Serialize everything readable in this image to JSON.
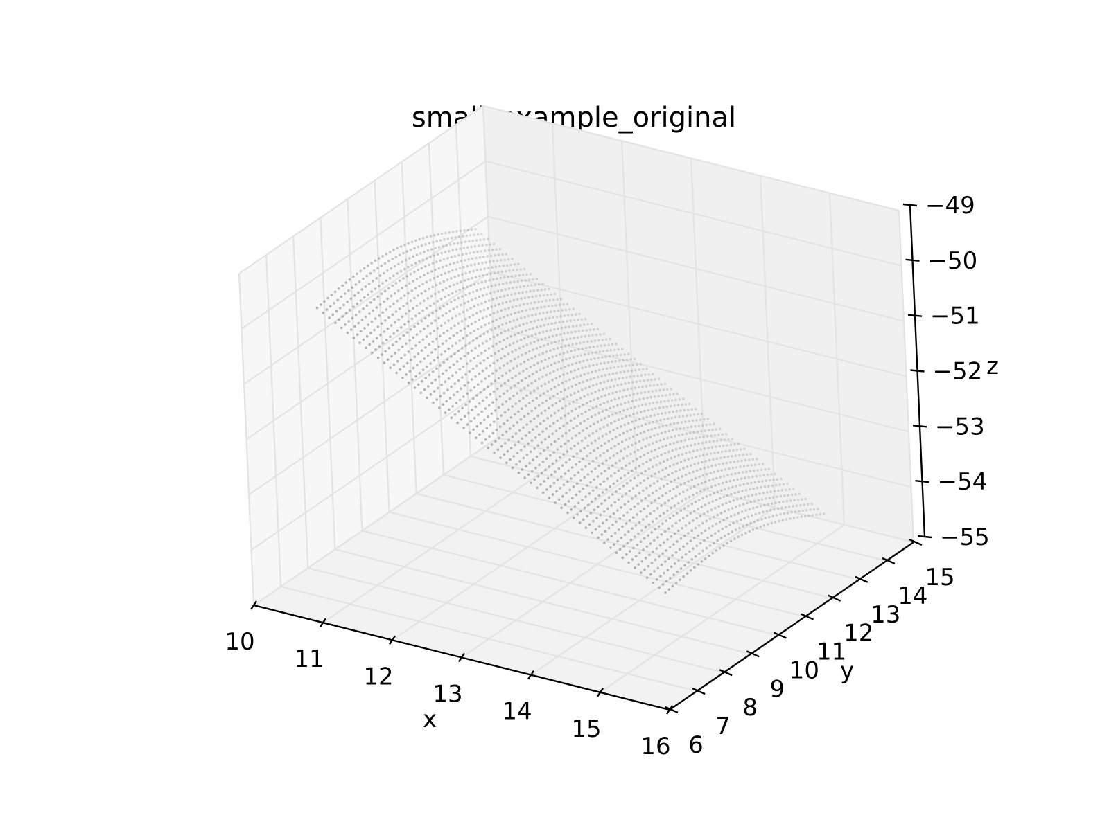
{
  "chart_data": {
    "type": "scatter",
    "projection": "3d",
    "title": "small_example_original",
    "xlabel": "x",
    "ylabel": "y",
    "zlabel": "z",
    "xlim": [
      10,
      16
    ],
    "ylim": [
      6,
      15
    ],
    "zlim": [
      -55,
      -49
    ],
    "xticks": [
      "10",
      "11",
      "12",
      "13",
      "14",
      "15",
      "16"
    ],
    "yticks": [
      "6",
      "7",
      "8",
      "9",
      "10",
      "11",
      "12",
      "13",
      "14",
      "15"
    ],
    "zticks": [
      "−49",
      "−50",
      "−51",
      "−52",
      "−53",
      "−54",
      "−55"
    ],
    "grid": true,
    "marker_color": "#9a9a9a",
    "series": [
      {
        "surface": "tilted-plane-of-point-rows",
        "x_range": [
          10.3,
          15.2
        ],
        "y_range": [
          8.0,
          13.8
        ],
        "z_range": [
          -54.6,
          -50.2
        ]
      }
    ]
  }
}
